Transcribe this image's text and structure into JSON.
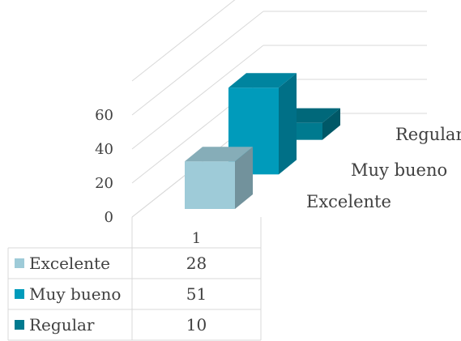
{
  "chart_data": {
    "type": "bar",
    "categories": [
      "1"
    ],
    "series": [
      {
        "name": "Excelente",
        "values": [
          28
        ],
        "color": "#9ecbd8"
      },
      {
        "name": "Muy bueno",
        "values": [
          51
        ],
        "color": "#009bbb"
      },
      {
        "name": "Regular",
        "values": [
          10
        ],
        "color": "#007a8f"
      }
    ],
    "yticks": [
      "0",
      "20",
      "40",
      "60"
    ],
    "ylim": [
      0,
      80
    ],
    "grid": true,
    "legend": "data-table-below"
  }
}
